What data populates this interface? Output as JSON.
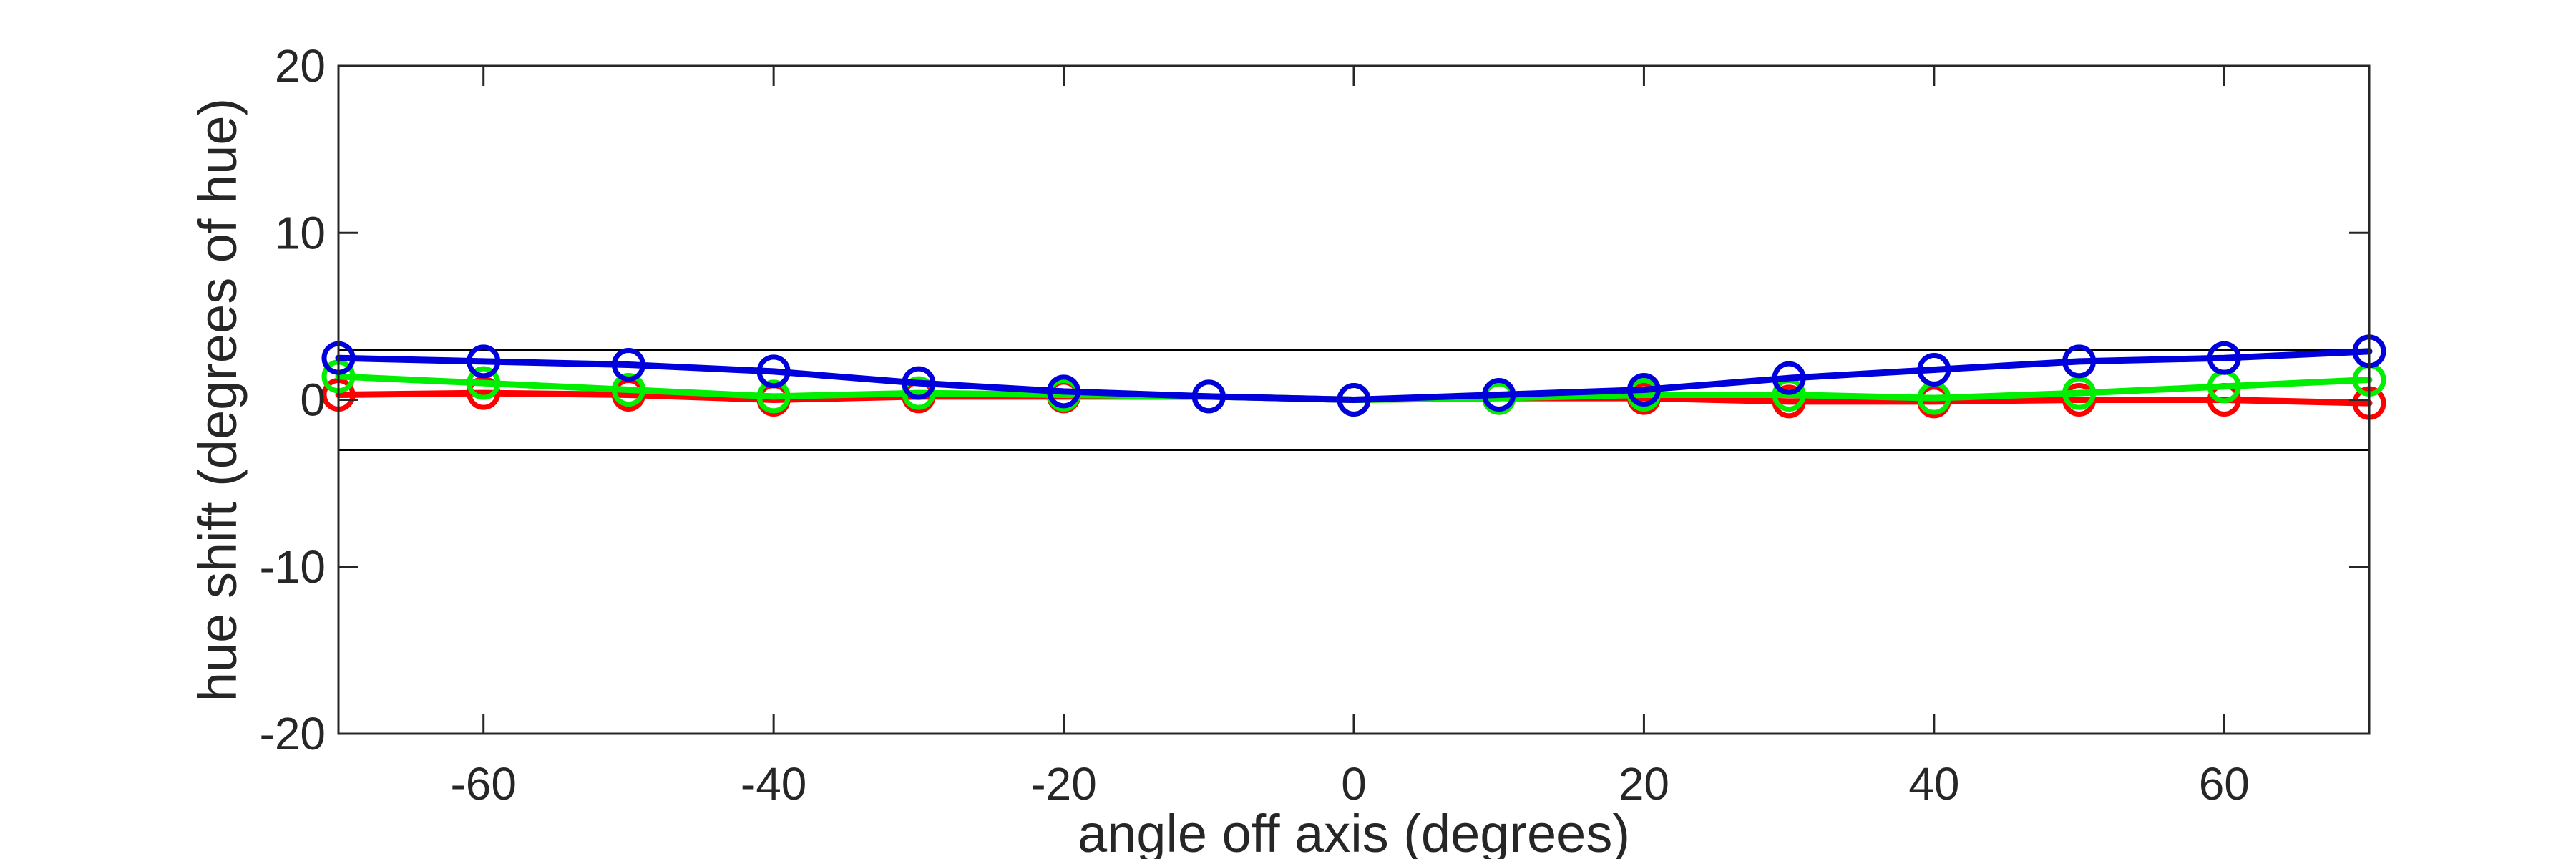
{
  "chart_data": {
    "type": "line",
    "title": "",
    "xlabel": "angle off axis (degrees)",
    "ylabel": "hue shift (degrees of hue)",
    "xlim": [
      -70,
      70
    ],
    "ylim": [
      -20,
      20
    ],
    "xticks": [
      -60,
      -40,
      -20,
      0,
      20,
      40,
      60
    ],
    "yticks": [
      20,
      10,
      0,
      -10,
      -20
    ],
    "reference_lines": [
      3,
      -3
    ],
    "grid": false,
    "x": [
      -70,
      -60,
      -50,
      -40,
      -30,
      -20,
      -10,
      0,
      10,
      20,
      30,
      40,
      50,
      60,
      70
    ],
    "series": [
      {
        "color": "#ff0000",
        "values": [
          0.3,
          0.4,
          0.3,
          0.0,
          0.2,
          0.2,
          0.2,
          0.0,
          0.1,
          0.1,
          -0.1,
          -0.1,
          0.0,
          0.0,
          -0.2
        ]
      },
      {
        "color": "#00ee00",
        "values": [
          1.4,
          1.0,
          0.6,
          0.2,
          0.4,
          0.3,
          0.2,
          0.0,
          0.1,
          0.3,
          0.3,
          0.1,
          0.4,
          0.8,
          1.2
        ]
      },
      {
        "color": "#0000dd",
        "values": [
          2.5,
          2.3,
          2.1,
          1.7,
          1.0,
          0.5,
          0.2,
          0.0,
          0.3,
          0.6,
          1.3,
          1.8,
          2.3,
          2.5,
          2.9
        ]
      }
    ]
  }
}
